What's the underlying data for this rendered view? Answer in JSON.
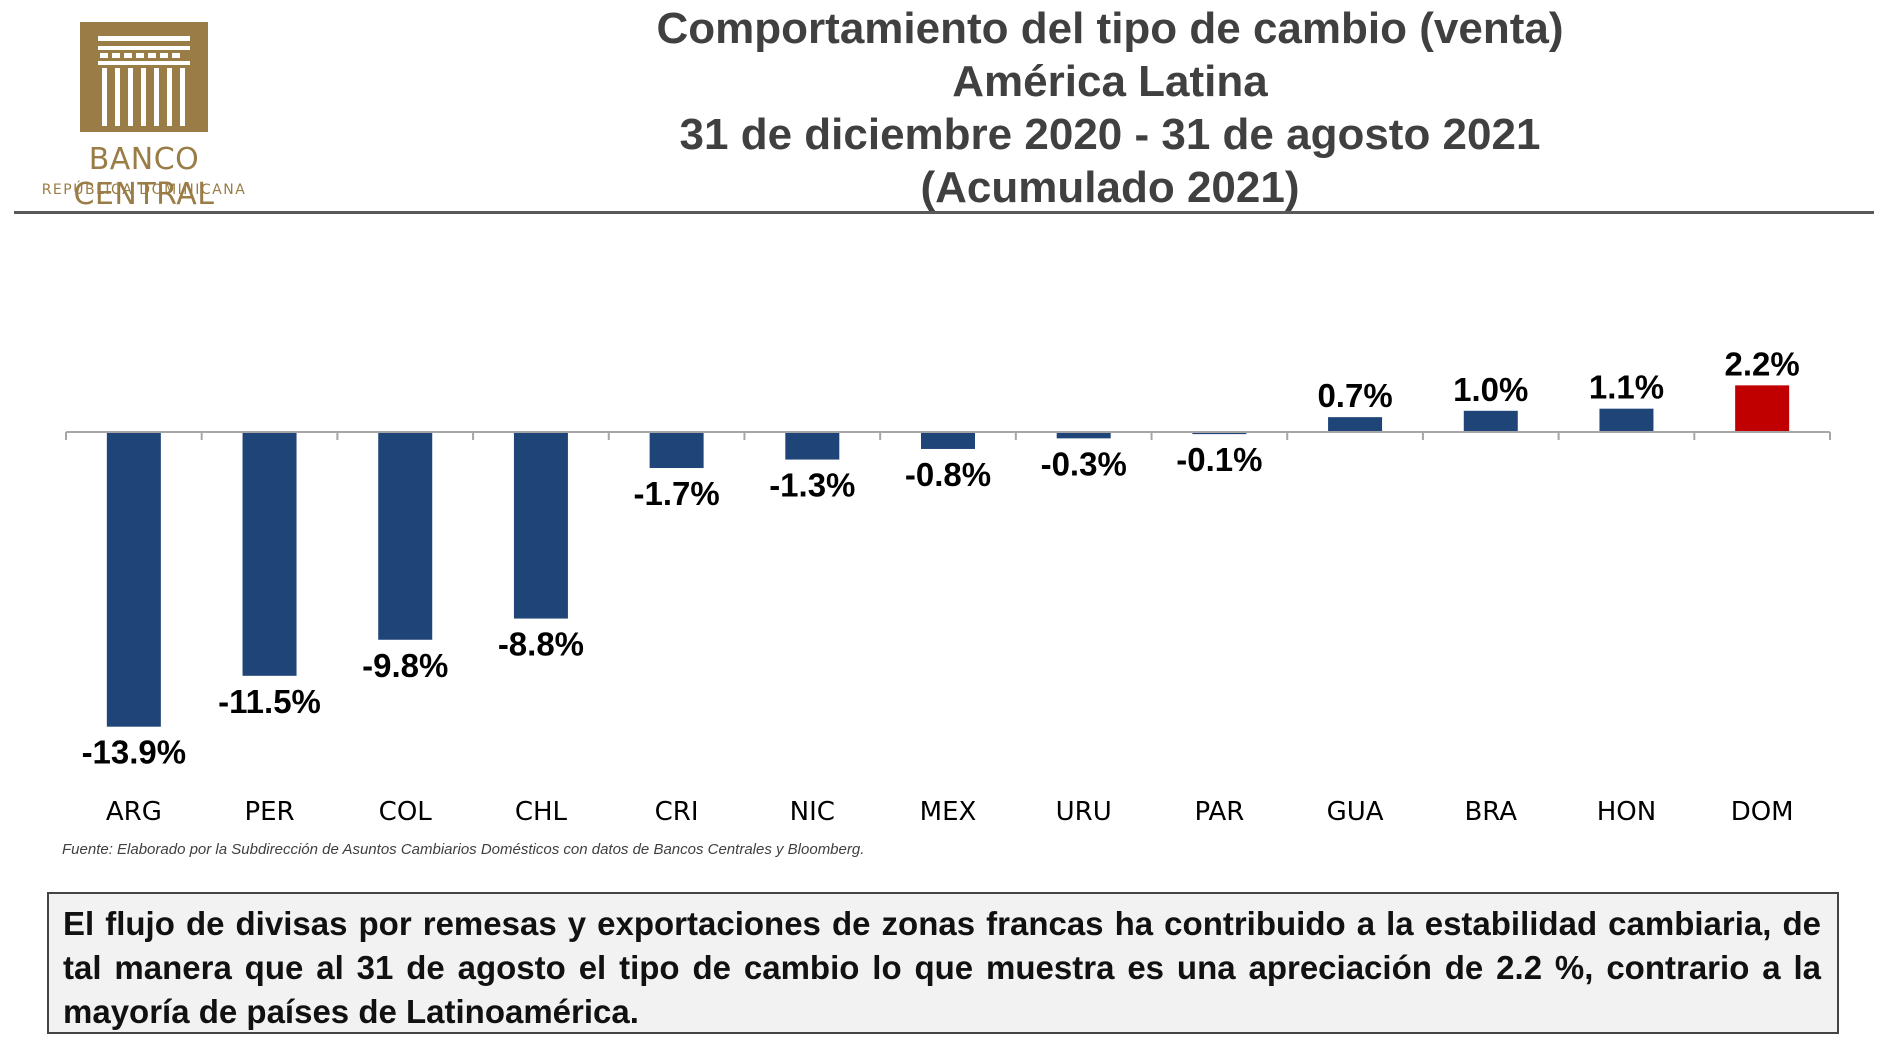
{
  "logo": {
    "name": "BANCO CENTRAL",
    "subtitle": "REPÚBLICA DOMINICANA"
  },
  "header": {
    "title_lines": [
      "Comportamiento del tipo de cambio (venta)",
      "América Latina",
      "31 de diciembre 2020 - 31 de agosto 2021",
      "(Acumulado 2021)"
    ]
  },
  "chart_data": {
    "type": "bar",
    "categories": [
      "ARG",
      "PER",
      "COL",
      "CHL",
      "CRI",
      "NIC",
      "MEX",
      "URU",
      "PAR",
      "GUA",
      "BRA",
      "HON",
      "DOM"
    ],
    "values": [
      -13.9,
      -11.5,
      -9.8,
      -8.8,
      -1.7,
      -1.3,
      -0.8,
      -0.3,
      -0.1,
      0.7,
      1.0,
      1.1,
      2.2
    ],
    "labels": [
      "-13.9%",
      "-11.5%",
      "-9.8%",
      "-8.8%",
      "-1.7%",
      "-1.3%",
      "-0.8%",
      "-0.3%",
      "-0.1%",
      "0.7%",
      "1.0%",
      "1.1%",
      "2.2%"
    ],
    "bar_color": "#1f4478",
    "highlight_category": "DOM",
    "highlight_color": "#c00000",
    "axis_color": "#a6a6a6",
    "grid": false,
    "legend": "none",
    "xlabel": "",
    "ylabel": ""
  },
  "source": "Fuente: Elaborado por la Subdirección de Asuntos Cambiarios Domésticos con datos de Bancos Centrales y Bloomberg.",
  "note": "El flujo de divisas por remesas y exportaciones de zonas francas ha contribuido a la estabilidad cambiaria, de tal manera que al 31 de agosto el tipo de cambio lo que muestra es una apreciación de 2.2 %, contrario a la mayoría de países de Latinoamérica.",
  "colors": {
    "gold": "#9a7d46",
    "title": "#404040"
  }
}
